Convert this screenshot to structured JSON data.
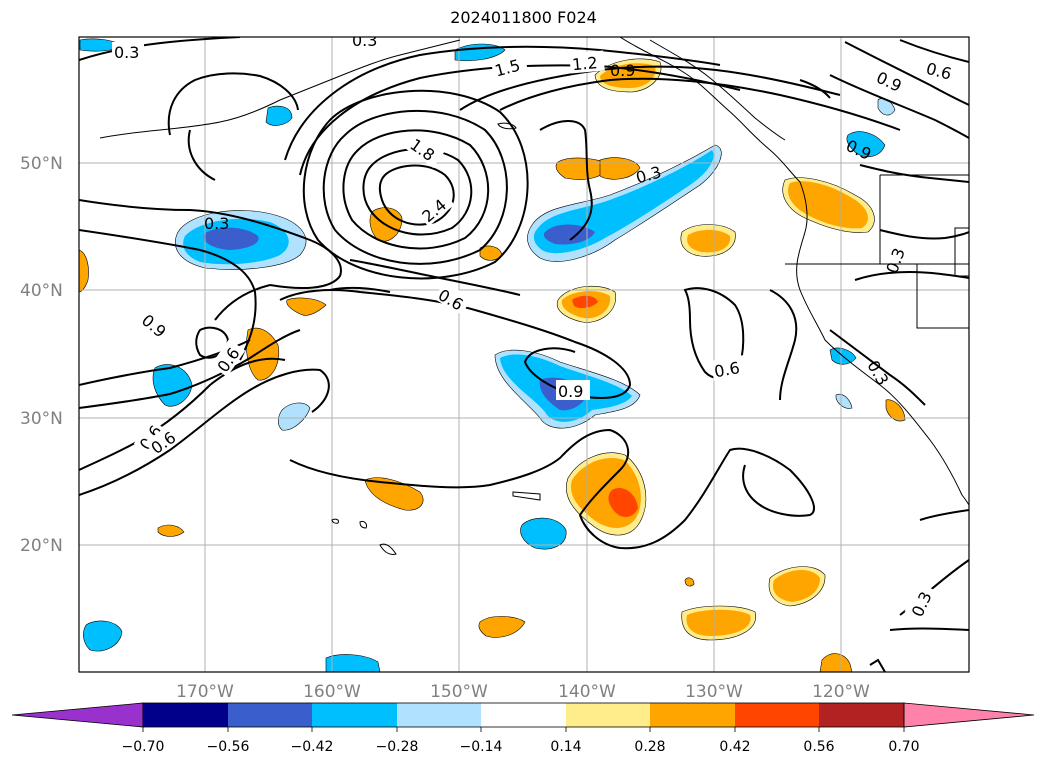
{
  "title": "2024011800 F024",
  "map": {
    "lat_labels": [
      "50°N",
      "40°N",
      "30°N",
      "20°N"
    ],
    "lon_labels": [
      "170°W",
      "160°W",
      "150°W",
      "140°W",
      "130°W",
      "120°W"
    ],
    "grid": true
  },
  "contour_labels": [
    "0.3",
    "1.5",
    "1.2",
    "0.9",
    "0.9",
    "1.8",
    "2.4",
    "0.3",
    "0.6",
    "0.3",
    "0.6",
    "0.9",
    "0.9",
    "0.6",
    "0.6",
    "0.9",
    "0.6",
    "0.3",
    "0.3",
    "0.3",
    "0.3"
  ],
  "colorbar": {
    "tick_labels": [
      "−0.70",
      "−0.56",
      "−0.42",
      "−0.28",
      "−0.14",
      "0.14",
      "0.28",
      "0.42",
      "0.56",
      "0.70"
    ],
    "colors": [
      "#9932cc",
      "#00008b",
      "#3a5fcd",
      "#00bfff",
      "#b0e2ff",
      "#ffffff",
      "#ffec8b",
      "#ffa500",
      "#ff4500",
      "#b22222",
      "#ff82ab"
    ]
  },
  "colors": {
    "neg_light": "#b0e2ff",
    "neg_mid": "#00bfff",
    "neg_dark": "#3a5fcd",
    "pos_light": "#ffec8b",
    "pos_mid": "#ffa500",
    "pos_dark": "#ff4500",
    "grid": "#b0b0b0"
  }
}
